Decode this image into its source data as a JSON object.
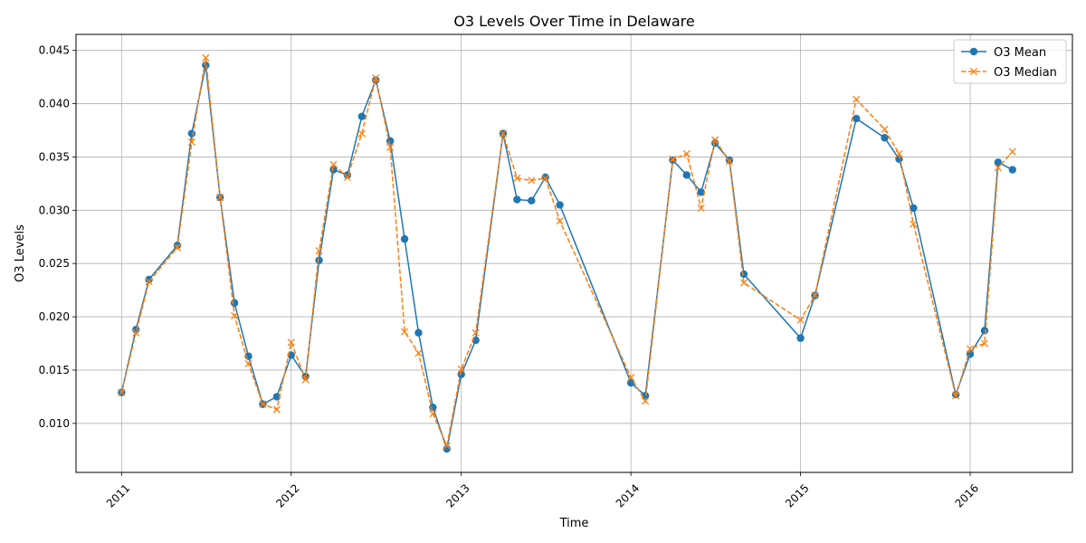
{
  "chart_data": {
    "type": "line",
    "title": "O3 Levels Over Time in Delaware",
    "xlabel": "Time",
    "ylabel": "O3 Levels",
    "xlim": [
      "2010-09-25",
      "2016-08-08"
    ],
    "ylim": [
      0.0054,
      0.0465
    ],
    "xticks": [
      "2011",
      "2012",
      "2013",
      "2014",
      "2015",
      "2016"
    ],
    "yticks": [
      "0.010",
      "0.015",
      "0.020",
      "0.025",
      "0.030",
      "0.035",
      "0.040",
      "0.045"
    ],
    "grid": true,
    "legend_position": "top-right",
    "colors": {
      "mean": "#1f77b4",
      "median": "#ff7f0e",
      "grid": "#b0b0b0"
    },
    "x": [
      "2011-01-01",
      "2011-02-01",
      "2011-03-01",
      "2011-05-01",
      "2011-06-01",
      "2011-07-01",
      "2011-08-01",
      "2011-09-01",
      "2011-10-01",
      "2011-11-01",
      "2011-12-01",
      "2012-01-01",
      "2012-02-01",
      "2012-03-01",
      "2012-04-01",
      "2012-05-01",
      "2012-06-01",
      "2012-07-01",
      "2012-08-01",
      "2012-09-01",
      "2012-10-01",
      "2012-11-01",
      "2012-12-01",
      "2013-01-01",
      "2013-02-01",
      "2013-04-01",
      "2013-05-01",
      "2013-06-01",
      "2013-07-01",
      "2013-08-01",
      "2014-01-01",
      "2014-02-01",
      "2014-04-01",
      "2014-05-01",
      "2014-06-01",
      "2014-07-01",
      "2014-08-01",
      "2014-09-01",
      "2015-01-01",
      "2015-02-01",
      "2015-05-01",
      "2015-07-01",
      "2015-08-01",
      "2015-09-01",
      "2015-12-01",
      "2016-01-01",
      "2016-02-01",
      "2016-03-01",
      "2016-04-01"
    ],
    "series": [
      {
        "name": "O3 Mean",
        "marker": "circle",
        "line": "solid",
        "values": [
          0.0129,
          0.0188,
          0.0235,
          0.0267,
          0.0372,
          0.0436,
          0.0312,
          0.0213,
          0.0163,
          0.0118,
          0.0125,
          0.0164,
          0.0144,
          0.0253,
          0.0338,
          0.0333,
          0.0388,
          0.0422,
          0.0365,
          0.0273,
          0.0185,
          0.0115,
          0.0076,
          0.0146,
          0.0178,
          0.0372,
          0.031,
          0.0309,
          0.0331,
          0.0305,
          0.0138,
          0.0126,
          0.0347,
          0.0333,
          0.0317,
          0.0363,
          0.0347,
          0.024,
          0.018,
          0.022,
          0.0386,
          0.0368,
          0.0348,
          0.0302,
          0.0127,
          0.0165,
          0.0187,
          0.0345,
          0.0338
        ]
      },
      {
        "name": "O3 Median",
        "marker": "x",
        "line": "dashed",
        "values": [
          0.0129,
          0.0185,
          0.0233,
          0.0265,
          0.0364,
          0.0443,
          0.0312,
          0.0201,
          0.0156,
          0.0118,
          0.0113,
          0.0176,
          0.0141,
          0.0262,
          0.0343,
          0.0331,
          0.0372,
          0.0424,
          0.0359,
          0.0186,
          0.0166,
          0.0109,
          0.0079,
          0.0151,
          0.0185,
          0.0372,
          0.033,
          0.0328,
          0.033,
          0.029,
          0.0143,
          0.0121,
          0.0348,
          0.0353,
          0.0302,
          0.0366,
          0.0346,
          0.0232,
          0.0197,
          0.022,
          0.0404,
          0.0376,
          0.0353,
          0.0287,
          0.0126,
          0.017,
          0.0175,
          0.034,
          0.0355
        ]
      }
    ]
  }
}
